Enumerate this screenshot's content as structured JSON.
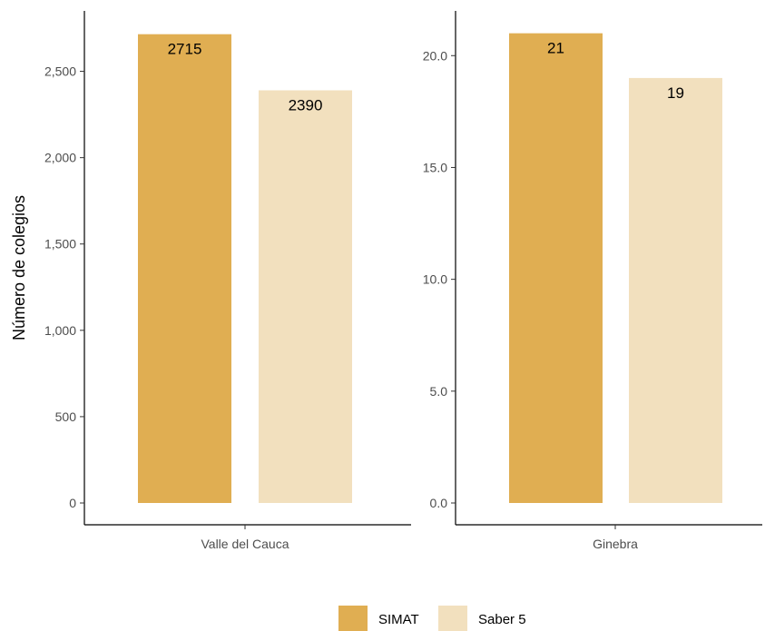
{
  "chart_data": [
    {
      "type": "bar",
      "categories": [
        "Valle del Cauca"
      ],
      "series": [
        {
          "name": "SIMAT",
          "values": [
            2715
          ]
        },
        {
          "name": "Saber 5",
          "values": [
            2390
          ]
        }
      ],
      "data_labels": [
        "2715",
        "2390"
      ],
      "ylabel": "Número de colegios",
      "ylim": [
        0,
        2850
      ],
      "yticks": [
        0,
        500,
        1000,
        1500,
        2000,
        2500
      ],
      "ytick_labels": [
        "0",
        "500",
        "1,000",
        "1,500",
        "2,000",
        "2,500"
      ],
      "grid": false
    },
    {
      "type": "bar",
      "categories": [
        "Ginebra"
      ],
      "series": [
        {
          "name": "SIMAT",
          "values": [
            21
          ]
        },
        {
          "name": "Saber 5",
          "values": [
            19
          ]
        }
      ],
      "data_labels": [
        "21",
        "19"
      ],
      "ylim": [
        0,
        22
      ],
      "yticks": [
        0,
        5,
        10,
        15,
        20
      ],
      "ytick_labels": [
        "0.0",
        "5.0",
        "10.0",
        "15.0",
        "20.0"
      ],
      "grid": false
    }
  ],
  "legend": {
    "placement": "bottom",
    "items": [
      {
        "label": "SIMAT",
        "color": "#E0AE52"
      },
      {
        "label": "Saber 5",
        "color": "#F2E0BE"
      }
    ]
  },
  "colors": {
    "SIMAT": "#E0AE52",
    "Saber 5": "#F2E0BE",
    "axis": "#000000",
    "tick_text": "#4d4d4d"
  }
}
